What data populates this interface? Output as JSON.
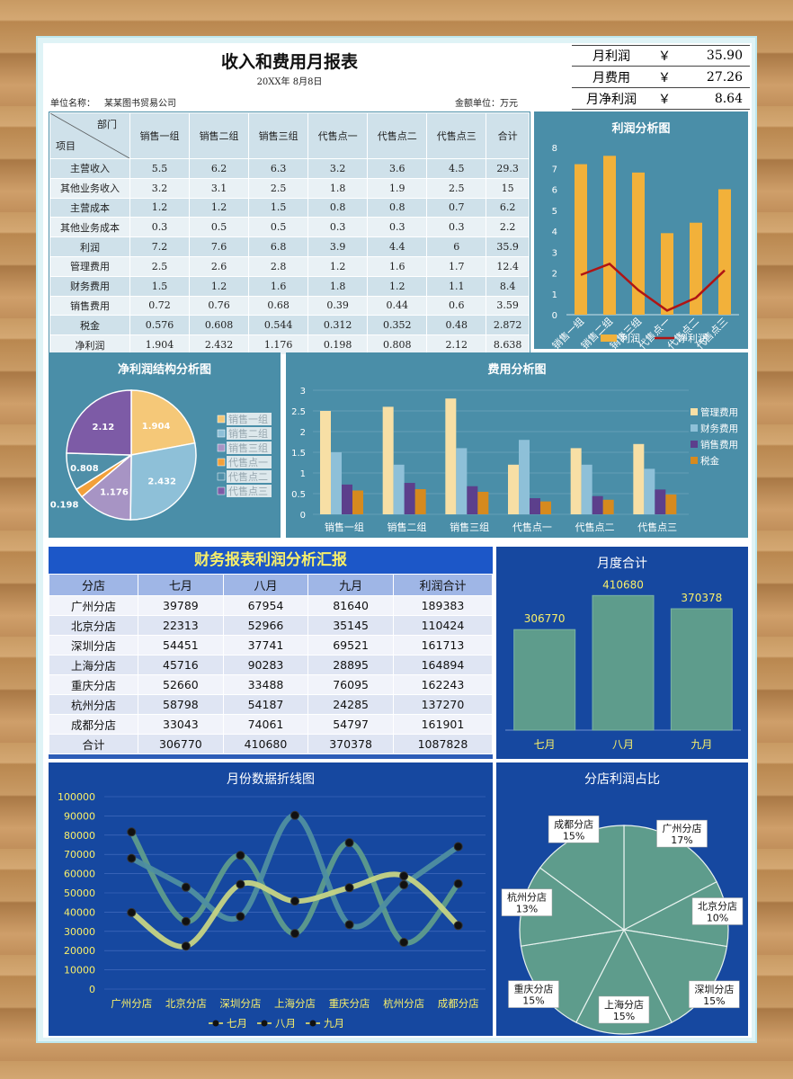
{
  "header": {
    "title": "收入和费用月报表",
    "date": "20XX年 8月8日",
    "unit_name_label": "单位名称：",
    "unit_name": "某某图书贸易公司",
    "money_unit": "金额单位：万元"
  },
  "summary": [
    {
      "label": "月利润",
      "currency": "￥",
      "value": "35.90"
    },
    {
      "label": "月费用",
      "currency": "￥",
      "value": "27.26"
    },
    {
      "label": "月净利润",
      "currency": "￥",
      "value": "8.64"
    }
  ],
  "table1": {
    "corner_top": "部门",
    "corner_bottom": "项目",
    "columns": [
      "销售一组",
      "销售二组",
      "销售三组",
      "代售点一",
      "代售点二",
      "代售点三",
      "合计"
    ],
    "rows": [
      {
        "label": "主营收入",
        "cells": [
          "5.5",
          "6.2",
          "6.3",
          "3.2",
          "3.6",
          "4.5",
          "29.3"
        ]
      },
      {
        "label": "其他业务收入",
        "cells": [
          "3.2",
          "3.1",
          "2.5",
          "1.8",
          "1.9",
          "2.5",
          "15"
        ]
      },
      {
        "label": "主营成本",
        "cells": [
          "1.2",
          "1.2",
          "1.5",
          "0.8",
          "0.8",
          "0.7",
          "6.2"
        ]
      },
      {
        "label": "其他业务成本",
        "cells": [
          "0.3",
          "0.5",
          "0.5",
          "0.3",
          "0.3",
          "0.3",
          "2.2"
        ]
      },
      {
        "label": "利润",
        "cells": [
          "7.2",
          "7.6",
          "6.8",
          "3.9",
          "4.4",
          "6",
          "35.9"
        ]
      },
      {
        "label": "管理费用",
        "cells": [
          "2.5",
          "2.6",
          "2.8",
          "1.2",
          "1.6",
          "1.7",
          "12.4"
        ]
      },
      {
        "label": "财务费用",
        "cells": [
          "1.5",
          "1.2",
          "1.6",
          "1.8",
          "1.2",
          "1.1",
          "8.4"
        ]
      },
      {
        "label": "销售费用",
        "cells": [
          "0.72",
          "0.76",
          "0.68",
          "0.39",
          "0.44",
          "0.6",
          "3.59"
        ]
      },
      {
        "label": "税金",
        "cells": [
          "0.576",
          "0.608",
          "0.544",
          "0.312",
          "0.352",
          "0.48",
          "2.872"
        ]
      },
      {
        "label": "净利润",
        "cells": [
          "1.904",
          "2.432",
          "1.176",
          "0.198",
          "0.808",
          "2.12",
          "8.638"
        ]
      }
    ]
  },
  "table2": {
    "title": "财务报表利润分析汇报",
    "columns": [
      "分店",
      "七月",
      "八月",
      "九月",
      "利润合计"
    ],
    "rows": [
      [
        "广州分店",
        "39789",
        "67954",
        "81640",
        "189383"
      ],
      [
        "北京分店",
        "22313",
        "52966",
        "35145",
        "110424"
      ],
      [
        "深圳分店",
        "54451",
        "37741",
        "69521",
        "161713"
      ],
      [
        "上海分店",
        "45716",
        "90283",
        "28895",
        "164894"
      ],
      [
        "重庆分店",
        "52660",
        "33488",
        "76095",
        "162243"
      ],
      [
        "杭州分店",
        "58798",
        "54187",
        "24285",
        "137270"
      ],
      [
        "成都分店",
        "33043",
        "74061",
        "54797",
        "161901"
      ],
      [
        "合计",
        "306770",
        "410680",
        "370378",
        "1087828"
      ]
    ]
  },
  "colors": {
    "panel_teal": "#4a8ea8",
    "orange": "#f2b13a",
    "dark_red": "#b01414",
    "navy": "#1648a0",
    "green_bar": "#5e9c8c",
    "yellow_text": "#f8ef6a"
  },
  "chart_data": [
    {
      "type": "bar",
      "title": "利润分析图",
      "categories": [
        "销售一组",
        "销售二组",
        "销售三组",
        "代售点一",
        "代售点二",
        "代售点三"
      ],
      "series": [
        {
          "name": "利润",
          "type": "bar",
          "values": [
            7.2,
            7.6,
            6.8,
            3.9,
            4.4,
            6
          ],
          "color": "#f2b13a"
        },
        {
          "name": "净利润",
          "type": "line",
          "values": [
            1.904,
            2.432,
            1.176,
            0.198,
            0.808,
            2.12
          ],
          "color": "#b01414"
        }
      ],
      "ylim": [
        0,
        8
      ],
      "yticks": [
        0,
        1,
        2,
        3,
        4,
        5,
        6,
        7,
        8
      ],
      "legend": "bottom"
    },
    {
      "type": "pie",
      "title": "净利润结构分析图",
      "categories": [
        "销售一组",
        "销售二组",
        "销售三组",
        "代售点一",
        "代售点二",
        "代售点三"
      ],
      "values": [
        1.904,
        2.432,
        1.176,
        0.198,
        0.808,
        2.12
      ],
      "colors": [
        "#f5c878",
        "#8ec0d8",
        "#a794c4",
        "#f2a03a",
        "#4f8fa8",
        "#7d5ba6"
      ],
      "legend": "right"
    },
    {
      "type": "bar",
      "title": "费用分析图",
      "categories": [
        "销售一组",
        "销售二组",
        "销售三组",
        "代售点一",
        "代售点二",
        "代售点三"
      ],
      "series": [
        {
          "name": "管理费用",
          "values": [
            2.5,
            2.6,
            2.8,
            1.2,
            1.6,
            1.7
          ],
          "color": "#f7dfa5"
        },
        {
          "name": "财务费用",
          "values": [
            1.5,
            1.2,
            1.6,
            1.8,
            1.2,
            1.1
          ],
          "color": "#8ec0d8"
        },
        {
          "name": "销售费用",
          "values": [
            0.72,
            0.76,
            0.68,
            0.39,
            0.44,
            0.6
          ],
          "color": "#5c3f8c"
        },
        {
          "name": "税金",
          "values": [
            0.576,
            0.608,
            0.544,
            0.312,
            0.352,
            0.48
          ],
          "color": "#d68a1e"
        }
      ],
      "ylim": [
        0,
        3
      ],
      "yticks": [
        0,
        0.5,
        1,
        1.5,
        2,
        2.5,
        3
      ],
      "legend": "right"
    },
    {
      "type": "bar",
      "title": "月度合计",
      "categories": [
        "七月",
        "八月",
        "九月"
      ],
      "values": [
        306770,
        410680,
        370378
      ],
      "ylim": [
        0,
        450000
      ],
      "color": "#5e9c8c"
    },
    {
      "type": "line",
      "title": "月份数据折线图",
      "categories": [
        "广州分店",
        "北京分店",
        "深圳分店",
        "上海分店",
        "重庆分店",
        "杭州分店",
        "成都分店"
      ],
      "series": [
        {
          "name": "七月",
          "values": [
            39789,
            22313,
            54451,
            45716,
            52660,
            58798,
            33043
          ],
          "color": "#c6d484"
        },
        {
          "name": "八月",
          "values": [
            67954,
            52966,
            37741,
            90283,
            33488,
            54187,
            74061
          ],
          "color": "#4f8fa0"
        },
        {
          "name": "九月",
          "values": [
            81640,
            35145,
            69521,
            28895,
            76095,
            24285,
            54797
          ],
          "color": "#5e9c8c"
        }
      ],
      "ylim": [
        0,
        100000
      ],
      "yticks": [
        0,
        10000,
        20000,
        30000,
        40000,
        50000,
        60000,
        70000,
        80000,
        90000,
        100000
      ],
      "legend": "bottom"
    },
    {
      "type": "pie",
      "title": "分店利润占比",
      "categories": [
        "广州分店",
        "北京分店",
        "深圳分店",
        "上海分店",
        "重庆分店",
        "杭州分店",
        "成都分店"
      ],
      "values": [
        189383,
        110424,
        161713,
        164894,
        162243,
        137270,
        161901
      ],
      "labels": [
        "17%",
        "10%",
        "15%",
        "15%",
        "15%",
        "13%",
        "15%"
      ],
      "color": "#5e9c8c"
    }
  ]
}
